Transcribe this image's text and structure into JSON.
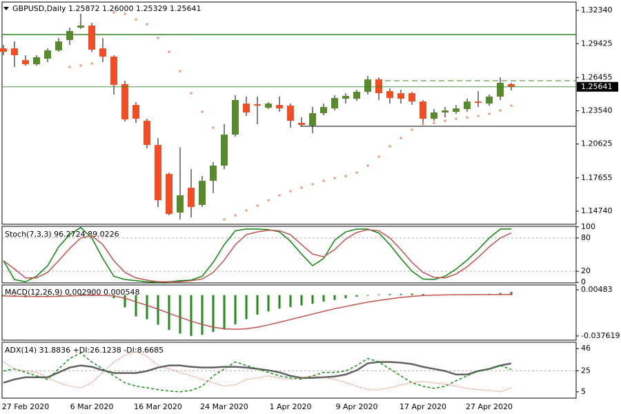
{
  "chart_data": [
    {
      "type": "candlestick",
      "title": "GBPUSD,Daily  1.25872 1.26000 1.25329 1.25641",
      "categories": [
        null,
        null,
        "27 Feb 2020",
        null,
        null,
        null,
        null,
        null,
        "6 Mar 2020",
        null,
        null,
        null,
        null,
        null,
        "16 Mar 2020",
        null,
        null,
        null,
        null,
        null,
        "24 Mar 2020",
        null,
        null,
        null,
        null,
        null,
        "1 Apr 2020",
        null,
        null,
        null,
        null,
        null,
        "9 Apr 2020",
        null,
        null,
        null,
        null,
        null,
        "17 Apr 2020",
        null,
        null,
        null,
        null,
        null,
        "27 Apr 2020",
        null,
        null
      ],
      "open": [
        1.2901,
        1.2901,
        1.2798,
        1.2762,
        1.2811,
        1.2883,
        1.2974,
        1.3083,
        1.3101,
        1.2901,
        1.2829,
        1.2587,
        1.2405,
        1.2266,
        1.2054,
        1.18,
        1.1461,
        1.1679,
        1.1528,
        1.174,
        1.1873,
        1.2145,
        1.2417,
        1.2411,
        1.2381,
        1.2405,
        1.2399,
        1.2248,
        1.2224,
        1.2333,
        1.2375,
        1.246,
        1.246,
        1.252,
        1.2629,
        1.2526,
        1.2508,
        1.2508,
        1.2435,
        1.2284,
        1.2339,
        1.2345,
        1.2369,
        1.2435,
        1.2417,
        1.2478,
        1.25872
      ],
      "high": [
        1.2931,
        1.2962,
        1.2841,
        1.2841,
        1.2901,
        1.2992,
        1.3083,
        1.3204,
        1.3125,
        1.2992,
        1.2841,
        1.2617,
        1.2429,
        1.2284,
        1.2115,
        1.1812,
        1.2033,
        1.1842,
        1.1782,
        1.1903,
        1.2236,
        1.249,
        1.2478,
        1.2478,
        1.2429,
        1.2478,
        1.2417,
        1.2296,
        1.2387,
        1.2417,
        1.249,
        1.2508,
        1.2538,
        1.2659,
        1.2647,
        1.255,
        1.2538,
        1.252,
        1.2447,
        1.2369,
        1.2387,
        1.2405,
        1.246,
        1.2526,
        1.2496,
        1.2647,
        1.26
      ],
      "low": [
        1.2841,
        1.2738,
        1.275,
        1.275,
        1.278,
        1.2871,
        1.2931,
        1.3071,
        1.2871,
        1.278,
        1.2496,
        1.226,
        1.2248,
        1.2024,
        1.151,
        1.1437,
        1.1401,
        1.1419,
        1.151,
        1.1631,
        1.1842,
        1.2127,
        1.2308,
        1.2236,
        1.2369,
        1.2345,
        1.2206,
        1.2218,
        1.2157,
        1.2314,
        1.2357,
        1.2417,
        1.2442,
        1.2496,
        1.2448,
        1.2417,
        1.2417,
        1.2405,
        1.2236,
        1.2266,
        1.2296,
        1.2327,
        1.2345,
        1.2387,
        1.2399,
        1.2448,
        1.25329
      ],
      "close": [
        1.2871,
        1.2841,
        1.2762,
        1.2823,
        1.2883,
        1.2962,
        1.3053,
        1.3101,
        1.2889,
        1.2829,
        1.2581,
        1.2278,
        1.2284,
        1.2054,
        1.157,
        1.1449,
        1.1613,
        1.151,
        1.174,
        1.1873,
        1.2145,
        1.2448,
        1.2339,
        1.2399,
        1.2417,
        1.2375,
        1.2266,
        1.223,
        1.2333,
        1.2387,
        1.2466,
        1.2484,
        1.252,
        1.2629,
        1.2508,
        1.2466,
        1.246,
        1.2435,
        1.2284,
        1.2339,
        1.2357,
        1.2375,
        1.2435,
        1.2423,
        1.2478,
        1.2599,
        1.25641
      ],
      "up_color": "#5a8a2e",
      "down_color": "#f24e24",
      "sar": {
        "color": "#f0a080",
        "values": [
          null,
          null,
          null,
          null,
          null,
          null,
          1.2738,
          1.275,
          1.2768,
          null,
          1.3216,
          1.3204,
          1.3155,
          1.3113,
          1.2992,
          1.2871,
          1.2702,
          1.2508,
          1.2345,
          1.2206,
          1.1401,
          1.1437,
          1.148,
          1.1522,
          1.157,
          1.1613,
          1.1649,
          1.1679,
          1.171,
          1.174,
          1.1764,
          1.1782,
          1.1812,
          1.1873,
          1.1951,
          1.2042,
          1.2115,
          1.2187,
          1.2236,
          1.2248,
          1.2266,
          1.2284,
          1.2296,
          1.2308,
          1.2327,
          1.2357,
          1.2399
        ]
      },
      "levels": [
        {
          "value": 1.3022,
          "color": "#2a8a1a",
          "style": "solid"
        },
        {
          "value": 1.2617,
          "color": "#2a8a1a",
          "style": "dashed"
        },
        {
          "value": 1.2218,
          "color": "#555555",
          "style": "solid"
        }
      ],
      "price_line_color": "#2a8a1a",
      "ylim": [
        1.1359,
        1.3307
      ],
      "yticks": [
        {
          "value": 1.3234,
          "label": "1.32340"
        },
        {
          "value": 1.29425,
          "label": "1.29425"
        },
        {
          "value": 1.26455,
          "label": "1.26455"
        },
        {
          "value": 1.2354,
          "label": "1.23540"
        },
        {
          "value": 1.20625,
          "label": "1.20625"
        },
        {
          "value": 1.17655,
          "label": "1.17655"
        },
        {
          "value": 1.1474,
          "label": "1.14740"
        }
      ]
    },
    {
      "type": "line",
      "title": "Stoch(7,3,3) 96.2724 89.0226",
      "series": [
        {
          "color": "#0a850a",
          "style": "solid",
          "values": [
            39,
            5,
            1,
            11,
            30,
            64,
            86,
            99,
            80,
            43,
            11,
            5,
            3,
            1,
            0,
            1,
            3,
            4,
            11,
            36,
            68,
            93,
            96,
            96,
            95,
            91,
            74,
            51,
            30,
            43,
            76,
            91,
            96,
            96,
            89,
            68,
            43,
            20,
            6,
            5,
            11,
            24,
            40,
            59,
            80,
            96,
            96.2724
          ]
        },
        {
          "color": "#c45050",
          "style": "solid",
          "values": [
            39,
            24,
            8,
            8,
            18,
            39,
            61,
            80,
            84,
            68,
            39,
            18,
            8,
            4,
            1,
            1,
            1,
            3,
            6,
            18,
            40,
            68,
            86,
            91,
            94,
            93,
            86,
            68,
            51,
            46,
            59,
            78,
            90,
            95,
            93,
            80,
            59,
            36,
            18,
            9,
            8,
            15,
            28,
            45,
            64,
            80,
            89.0226
          ]
        }
      ],
      "levels": [
        20,
        80
      ],
      "ylim": [
        -1,
        101
      ],
      "yticks": [
        100,
        80,
        20,
        0
      ]
    },
    {
      "type": "macd",
      "title": "MACD(12,26,9) 0.002900 0.000548",
      "series": [
        {
          "kind": "bar",
          "color": "#228b22",
          "values": [
            -0.001,
            -0.0015,
            -0.002,
            -0.0018,
            -0.001,
            -0.0003,
            0.0005,
            0.001,
            0.0008,
            -0.0005,
            -0.0029,
            -0.0113,
            -0.0196,
            -0.0222,
            -0.0273,
            -0.032,
            -0.0355,
            -0.037619,
            -0.0365,
            -0.034,
            -0.0318,
            -0.027,
            -0.0222,
            -0.018,
            -0.015,
            -0.0125,
            -0.011,
            -0.0095,
            -0.008,
            -0.006,
            -0.0045,
            -0.003,
            -0.0015,
            -0.0005,
            0.0005,
            0.001,
            0.0012,
            0.0014,
            0.001,
            0.0005,
            0.0003,
            0.0004,
            0.0006,
            0.0008,
            0.0012,
            0.002,
            0.0029
          ]
        },
        {
          "kind": "line",
          "color": "#c45050",
          "values": [
            -0.0008,
            -0.001,
            -0.0012,
            -0.0013,
            -0.0013,
            -0.0011,
            -0.0008,
            -0.0004,
            -0.0002,
            -0.0003,
            -0.0008,
            -0.0029,
            -0.0062,
            -0.0094,
            -0.013,
            -0.0168,
            -0.0205,
            -0.024,
            -0.027,
            -0.0295,
            -0.031,
            -0.0315,
            -0.031,
            -0.0295,
            -0.0275,
            -0.025,
            -0.0225,
            -0.02,
            -0.0175,
            -0.015,
            -0.0125,
            -0.0105,
            -0.0085,
            -0.0065,
            -0.005,
            -0.0035,
            -0.0022,
            -0.0012,
            -0.0005,
            -0.0001,
            0.0002,
            0.0003,
            0.0003,
            0.0004,
            0.0004,
            0.0005,
            0.000548
          ]
        }
      ],
      "ylim": [
        -0.0415,
        0.0093
      ],
      "yticks": [
        0.00483,
        -0.037619
      ]
    },
    {
      "type": "line",
      "title": "ADX(14) 31.8836 +DI:26.1238 -DI:8.6685",
      "series": [
        {
          "color": "#606060",
          "style": "thick",
          "values": [
            13.6,
            16.8,
            18.8,
            18.8,
            18.8,
            23.4,
            28,
            30,
            28.7,
            25.4,
            22.8,
            22.8,
            22.8,
            24.7,
            28,
            30,
            30,
            28.7,
            28,
            28,
            28.7,
            28.7,
            28,
            26.7,
            25.4,
            23.4,
            20.1,
            18.2,
            18.2,
            18.8,
            19.5,
            21.4,
            25.4,
            32,
            33.3,
            33.3,
            32.6,
            31.3,
            28.7,
            26.7,
            24.7,
            21.4,
            21.4,
            24.7,
            26.7,
            30,
            31.8836
          ]
        },
        {
          "color": "#1a8a1a",
          "style": "dashed",
          "values": [
            24.7,
            26.7,
            23.4,
            20.1,
            16.8,
            26.7,
            36.6,
            41.8,
            33.3,
            26.7,
            20.1,
            13.6,
            10.3,
            8.9,
            7,
            5.7,
            5,
            6.3,
            10.3,
            20.1,
            26.7,
            33.3,
            30,
            26.7,
            23.4,
            20.1,
            18.2,
            16.8,
            20.1,
            23.4,
            23.4,
            24.7,
            30,
            36.6,
            33.3,
            26.7,
            20.1,
            13.6,
            10.3,
            8.3,
            10.3,
            15.5,
            20.1,
            24.7,
            26.7,
            30,
            26.1238
          ]
        },
        {
          "color": "#e07050",
          "style": "dotted",
          "values": [
            33.3,
            26.7,
            24.7,
            23.4,
            18.2,
            13.6,
            10.3,
            8.9,
            13.6,
            23.4,
            33.3,
            39.9,
            43.2,
            38.6,
            30,
            26.7,
            23.4,
            20.1,
            16.8,
            13.6,
            10.3,
            11.6,
            16.8,
            18.2,
            20.1,
            18.2,
            16.8,
            18.2,
            20.1,
            18.8,
            16.8,
            13.6,
            10.3,
            7,
            7,
            8.9,
            11.6,
            13.6,
            14.9,
            13.6,
            12.2,
            10.3,
            8.3,
            7,
            6.3,
            5,
            8.6685
          ]
        }
      ],
      "levels": [
        25
      ],
      "ylim": [
        -1,
        52
      ],
      "yticks": [
        46,
        25,
        5
      ]
    }
  ]
}
